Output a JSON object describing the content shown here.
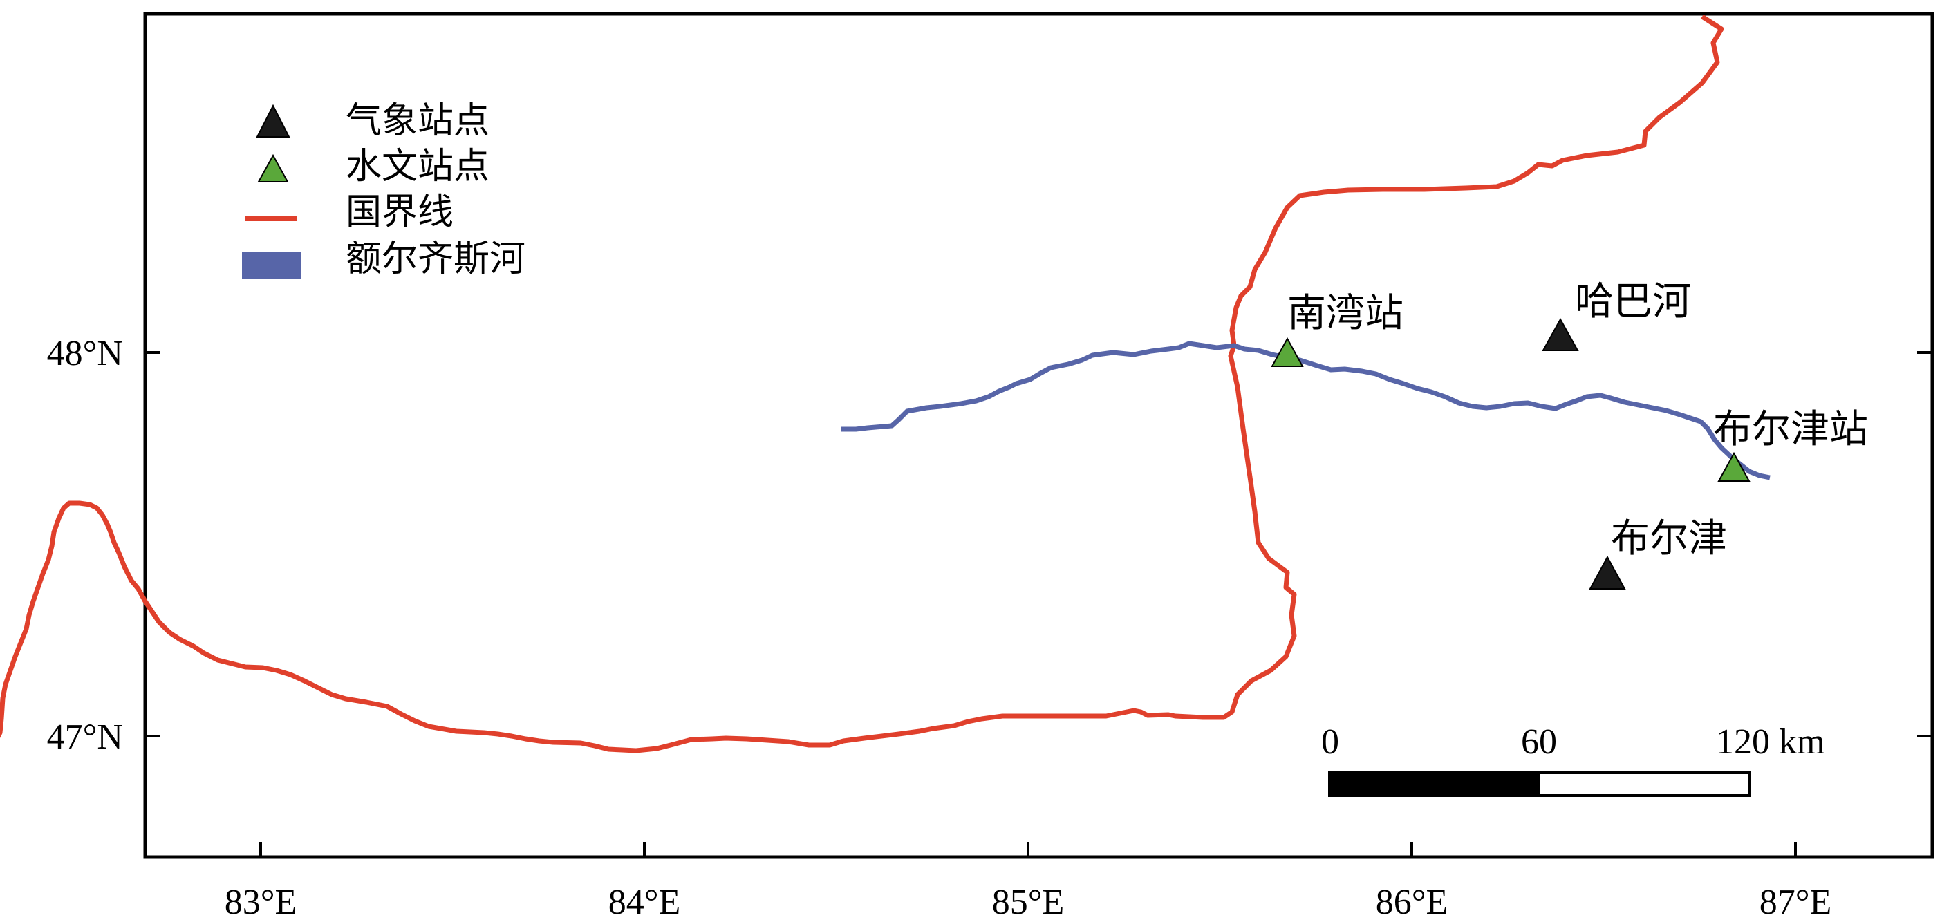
{
  "legend": {
    "items": [
      {
        "label": "气象站点",
        "color": "#1a1a1a",
        "symbol": "triangle"
      },
      {
        "label": "水文站点",
        "color": "#5aa83a",
        "symbol": "triangle"
      },
      {
        "label": "国界线",
        "color": "#e0402c",
        "symbol": "line"
      },
      {
        "label": "额尔齐斯河",
        "color": "#5765a8",
        "symbol": "band"
      }
    ]
  },
  "axes": {
    "x_ticks": [
      "83°E",
      "84°E",
      "85°E",
      "86°E",
      "87°E"
    ],
    "y_ticks": [
      "48°N",
      "47°N"
    ]
  },
  "stations": {
    "meteorological": [
      {
        "name": "哈巴河",
        "lon": 86.4,
        "lat": 48.05
      },
      {
        "name": "布尔津",
        "lon": 86.52,
        "lat": 47.42
      }
    ],
    "hydrological": [
      {
        "name": "南湾站",
        "lon": 85.68,
        "lat": 47.99
      },
      {
        "name": "布尔津站",
        "lon": 86.85,
        "lat": 47.69
      }
    ]
  },
  "scale_bar": {
    "labels": [
      "0",
      "60",
      "120 km"
    ]
  },
  "colors": {
    "border_line": "#e0402c",
    "river": "#5765a8",
    "met_station": "#1a1a1a",
    "hydro_station": "#5aa83a"
  }
}
